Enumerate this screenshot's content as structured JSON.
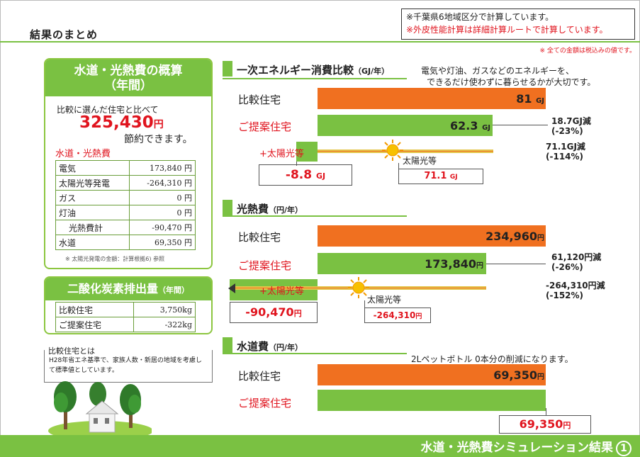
{
  "page_title": "結果のまとめ",
  "notes": {
    "line1": "※千葉県6地域区分で計算しています。",
    "line2": "※外皮性能計算は詳細計算ルートで計算しています。",
    "tax": "※ 全ての金額は税込みの値です。"
  },
  "summary": {
    "title1": "水道・光熱費の概算",
    "title2": "（年間）",
    "intro": "比較に選んだ住宅と比べて",
    "saving_value": "325,430",
    "saving_unit": "円",
    "saving_tail": "節約できます。",
    "cost_label": "水道・光熱費",
    "rows": [
      {
        "label": "電気",
        "value": "173,840 円"
      },
      {
        "label": "太陽光等発電",
        "value": "-264,310 円"
      },
      {
        "label": "ガス",
        "value": "0 円"
      },
      {
        "label": "灯油",
        "value": "0 円"
      },
      {
        "label": "光熱費計",
        "value": "-90,470 円"
      },
      {
        "label": "水道",
        "value": "69,350 円"
      }
    ],
    "footnote": "※ 太陽光発電の金額：計算根拠6) 参照"
  },
  "co2": {
    "title": "二酸化炭素排出量",
    "title_suffix": "（年間）",
    "rows": [
      {
        "label": "比較住宅",
        "value": "3,750kg"
      },
      {
        "label": "ご提案住宅",
        "value": "-322kg"
      }
    ]
  },
  "definition": {
    "head": "比較住宅とは",
    "body": "H28年省エネ基準で、家族人数・新居の地域を考慮して標準値としています。"
  },
  "energy": {
    "title": "一次エネルギー消費比較",
    "unit": "（GJ/年）",
    "desc1": "電気や灯油、ガスなどのエネルギーを、",
    "desc2": "できるだけ使わずに暮らせるかが大切です。",
    "compare_label": "比較住宅",
    "compare_value": "81",
    "proposed_label": "ご提案住宅",
    "proposed_value": "62.3",
    "unit_short": "GJ",
    "diff1": "18.7GJ減",
    "diff1b": "(-23%)",
    "solar_label": "+太陽光等",
    "solar_tag": "太陽光等",
    "solar_value": "71.1",
    "diff2": "71.1GJ減",
    "diff2b": "(-114%)",
    "net_value": "-8.8"
  },
  "utility": {
    "title": "光熱費",
    "unit": "（円/年）",
    "compare_label": "比較住宅",
    "compare_value": "234,960",
    "proposed_label": "ご提案住宅",
    "proposed_value": "173,840",
    "yen": "円",
    "diff1": "61,120円減",
    "diff1b": "(-26%)",
    "solar_label": "+太陽光等",
    "solar_tag": "太陽光等",
    "solar_value": "-264,310",
    "diff2": "-264,310円減",
    "diff2b": "(-152%)",
    "net_value": "-90,470"
  },
  "water": {
    "title": "水道費",
    "unit": "（円/年）",
    "desc": "2Lペットボトル 0本分の削減になります。",
    "compare_label": "比較住宅",
    "compare_value": "69,350",
    "proposed_label": "ご提案住宅",
    "proposed_value": "69,350",
    "yen": "円"
  },
  "footer": {
    "title": "水道・光熱費シミュレーション結果",
    "number": "1"
  },
  "colors": {
    "green": "#7ac142",
    "orange": "#f07020",
    "red": "#e0141e"
  }
}
